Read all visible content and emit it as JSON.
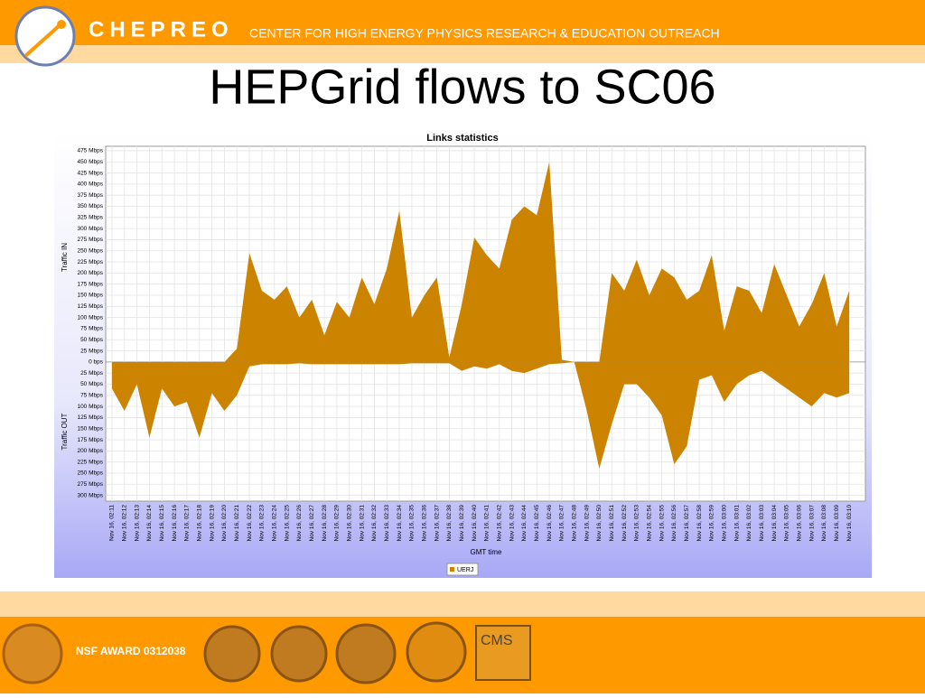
{
  "header": {
    "brand": "CHEPREO",
    "subtitle": "CENTER FOR HIGH ENERGY PHYSICS RESEARCH & EDUCATION OUTREACH"
  },
  "slide_title": "HEPGrid flows to SC06",
  "chart_data": {
    "type": "area",
    "title": "Links statistics",
    "ylabel_in": "Traffic IN",
    "ylabel_out": "Traffic OUT",
    "xlabel": "GMT time",
    "categories": [
      "Nov 16, 02:11",
      "Nov 16, 02:12",
      "Nov 16, 02:13",
      "Nov 16, 02:14",
      "Nov 16, 02:15",
      "Nov 16, 02:16",
      "Nov 16, 02:17",
      "Nov 16, 02:18",
      "Nov 16, 02:19",
      "Nov 16, 02:20",
      "Nov 16, 02:21",
      "Nov 16, 02:22",
      "Nov 16, 02:23",
      "Nov 16, 02:24",
      "Nov 16, 02:25",
      "Nov 16, 02:26",
      "Nov 16, 02:27",
      "Nov 16, 02:28",
      "Nov 16, 02:29",
      "Nov 16, 02:30",
      "Nov 16, 02:31",
      "Nov 16, 02:32",
      "Nov 16, 02:33",
      "Nov 16, 02:34",
      "Nov 16, 02:35",
      "Nov 16, 02:36",
      "Nov 16, 02:37",
      "Nov 16, 02:38",
      "Nov 16, 02:39",
      "Nov 16, 02:40",
      "Nov 16, 02:41",
      "Nov 16, 02:42",
      "Nov 16, 02:43",
      "Nov 16, 02:44",
      "Nov 16, 02:45",
      "Nov 16, 02:46",
      "Nov 16, 02:47",
      "Nov 16, 02:48",
      "Nov 16, 02:49",
      "Nov 16, 02:50",
      "Nov 16, 02:51",
      "Nov 16, 02:52",
      "Nov 16, 02:53",
      "Nov 16, 02:54",
      "Nov 16, 02:55",
      "Nov 16, 02:56",
      "Nov 16, 02:57",
      "Nov 16, 02:58",
      "Nov 16, 02:59",
      "Nov 16, 03:00",
      "Nov 16, 03:01",
      "Nov 16, 03:02",
      "Nov 16, 03:03",
      "Nov 16, 03:04",
      "Nov 16, 03:05",
      "Nov 16, 03:06",
      "Nov 16, 03:07",
      "Nov 16, 03:08",
      "Nov 16, 03:09",
      "Nov 16, 03:10"
    ],
    "series": [
      {
        "name": "UERJ",
        "color": "#cc8400",
        "values": [
          0,
          0,
          0,
          0,
          0,
          0,
          0,
          0,
          0,
          0,
          30,
          245,
          160,
          140,
          170,
          100,
          140,
          60,
          135,
          100,
          190,
          130,
          210,
          340,
          100,
          150,
          190,
          10,
          130,
          280,
          240,
          210,
          320,
          350,
          330,
          450,
          5,
          0,
          0,
          0,
          200,
          160,
          230,
          150,
          210,
          190,
          140,
          160,
          240,
          70,
          170,
          160,
          110,
          220,
          150,
          80,
          130,
          200,
          80,
          160
        ],
        "out_values": [
          -60,
          -110,
          -50,
          -170,
          -60,
          -100,
          -90,
          -170,
          -70,
          -110,
          -75,
          -10,
          -5,
          -5,
          -5,
          -3,
          -5,
          -5,
          -5,
          -5,
          -5,
          -5,
          -5,
          -5,
          -3,
          -3,
          -3,
          -3,
          -20,
          -10,
          -15,
          -5,
          -20,
          -25,
          -15,
          -5,
          -3,
          0,
          -110,
          -240,
          -140,
          -50,
          -50,
          -80,
          -120,
          -230,
          -190,
          -40,
          -30,
          -90,
          -50,
          -30,
          -20,
          -40,
          -60,
          -80,
          -100,
          -70,
          -80,
          -70
        ]
      }
    ],
    "ylim": [
      -313,
      485
    ],
    "yticks": [
      {
        "value": 475,
        "label": "475 Mbps"
      },
      {
        "value": 450,
        "label": "450 Mbps"
      },
      {
        "value": 425,
        "label": "425 Mbps"
      },
      {
        "value": 400,
        "label": "400 Mbps"
      },
      {
        "value": 375,
        "label": "375 Mbps"
      },
      {
        "value": 350,
        "label": "350 Mbps"
      },
      {
        "value": 325,
        "label": "325 Mbps"
      },
      {
        "value": 300,
        "label": "300 Mbps"
      },
      {
        "value": 275,
        "label": "275 Mbps"
      },
      {
        "value": 250,
        "label": "250 Mbps"
      },
      {
        "value": 225,
        "label": "225 Mbps"
      },
      {
        "value": 200,
        "label": "200 Mbps"
      },
      {
        "value": 175,
        "label": "175 Mbps"
      },
      {
        "value": 150,
        "label": "150 Mbps"
      },
      {
        "value": 125,
        "label": "125 Mbps"
      },
      {
        "value": 100,
        "label": "100 Mbps"
      },
      {
        "value": 75,
        "label": "75 Mbps"
      },
      {
        "value": 50,
        "label": "50 Mbps"
      },
      {
        "value": 25,
        "label": "25 Mbps"
      },
      {
        "value": 0,
        "label": "0 bps"
      },
      {
        "value": -25,
        "label": "25 Mbps"
      },
      {
        "value": -50,
        "label": "50 Mbps"
      },
      {
        "value": -75,
        "label": "75 Mbps"
      },
      {
        "value": -100,
        "label": "100 Mbps"
      },
      {
        "value": -125,
        "label": "125 Mbps"
      },
      {
        "value": -150,
        "label": "150 Mbps"
      },
      {
        "value": -175,
        "label": "175 Mbps"
      },
      {
        "value": -200,
        "label": "200 Mbps"
      },
      {
        "value": -225,
        "label": "225 Mbps"
      },
      {
        "value": -250,
        "label": "250 Mbps"
      },
      {
        "value": -275,
        "label": "275 Mbps"
      },
      {
        "value": -300,
        "label": "300 Mbps"
      }
    ],
    "grid": true
  },
  "footer": {
    "award": "NSF AWARD 0312038",
    "cms": "CMS"
  }
}
